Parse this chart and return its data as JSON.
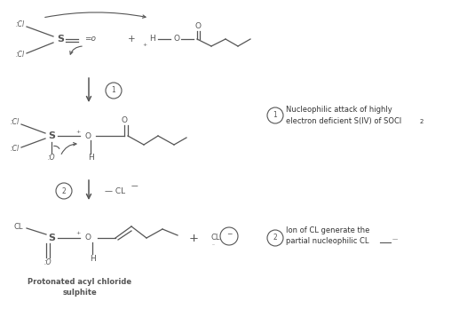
{
  "bg_color": "#ffffff",
  "gray": "#555555",
  "darkgray": "#333333",
  "fs_base": 6.5,
  "fs_small": 5.5,
  "fs_large": 8,
  "annotations": {
    "step1_desc_line1": "Nucleophilic attack of highly",
    "step1_desc_line2": "electron deficient S(IV) of SOCl",
    "step1_desc_sub": "2",
    "step2_desc_line1": "Ion of CL generate the",
    "step2_desc_line2": "partial nucleophilic CL",
    "bottom_label_line1": "Protonated acyl chloride",
    "bottom_label_line2": "sulphite"
  },
  "figsize": [
    5.17,
    3.57
  ],
  "dpi": 100
}
